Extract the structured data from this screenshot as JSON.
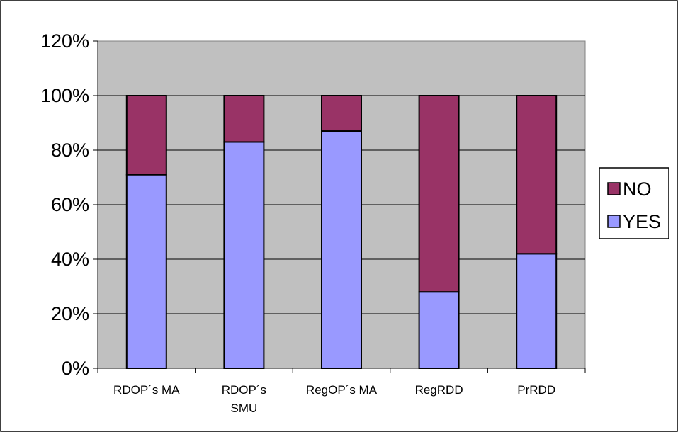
{
  "chart_data": {
    "type": "bar",
    "stacked": true,
    "title": "",
    "xlabel": "",
    "ylabel": "",
    "categories": [
      [
        "RDOP´s MA"
      ],
      [
        "RDOP´s",
        "SMU"
      ],
      [
        "RegOP´s MA"
      ],
      [
        "RegRDD"
      ],
      [
        "PrRDD"
      ]
    ],
    "series": [
      {
        "name": "YES",
        "color": "#9999FF",
        "values": [
          71,
          83,
          87,
          28,
          42
        ]
      },
      {
        "name": "NO",
        "color": "#993366",
        "values": [
          29,
          17,
          13,
          72,
          58
        ]
      }
    ],
    "yticks": [
      "0%",
      "20%",
      "40%",
      "60%",
      "80%",
      "100%",
      "120%"
    ],
    "ylim": [
      0,
      120
    ],
    "grid": true,
    "plot_background": "#C0C0C0",
    "legend_position": "right",
    "legend_order": [
      "NO",
      "YES"
    ]
  }
}
